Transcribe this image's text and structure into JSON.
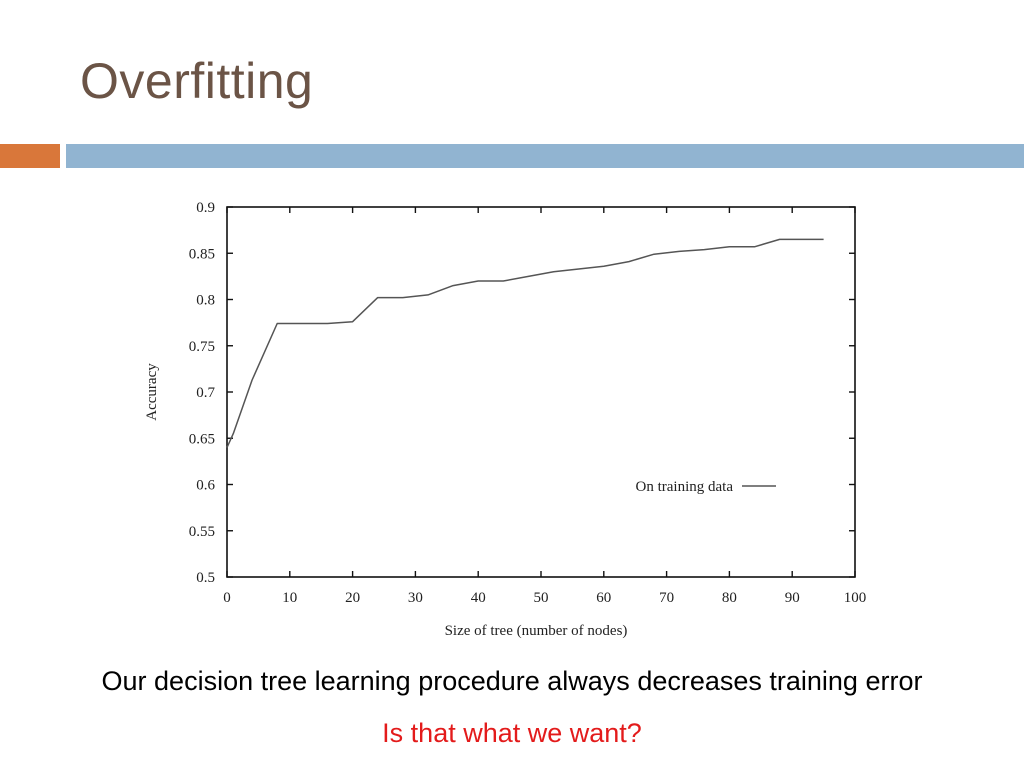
{
  "slide": {
    "title": "Overfitting",
    "caption": "Our decision tree learning procedure always decreases training error",
    "question": "Is that what we want?"
  },
  "colors": {
    "title": "#6b5446",
    "accent_orange": "#d9773a",
    "accent_blue": "#91b4d1",
    "question": "#e31b1b",
    "plot_line": "#555555"
  },
  "chart_data": {
    "type": "line",
    "xlabel": "Size of tree (number of nodes)",
    "ylabel": "Accuracy",
    "xlim": [
      0,
      100
    ],
    "ylim": [
      0.5,
      0.9
    ],
    "xticks": [
      0,
      10,
      20,
      30,
      40,
      50,
      60,
      70,
      80,
      90,
      100
    ],
    "yticks": [
      0.5,
      0.55,
      0.6,
      0.65,
      0.7,
      0.75,
      0.8,
      0.85,
      0.9
    ],
    "legend": "inside-lower-right",
    "grid": false,
    "series": [
      {
        "name": "On training data",
        "x": [
          0,
          1,
          4,
          8,
          12,
          16,
          20,
          24,
          28,
          32,
          36,
          40,
          44,
          48,
          52,
          56,
          60,
          64,
          68,
          72,
          76,
          80,
          84,
          88,
          92,
          95
        ],
        "y": [
          0.64,
          0.655,
          0.713,
          0.774,
          0.774,
          0.774,
          0.776,
          0.802,
          0.802,
          0.805,
          0.815,
          0.82,
          0.82,
          0.825,
          0.83,
          0.833,
          0.836,
          0.841,
          0.849,
          0.852,
          0.854,
          0.857,
          0.857,
          0.865,
          0.865,
          0.865
        ]
      }
    ]
  }
}
